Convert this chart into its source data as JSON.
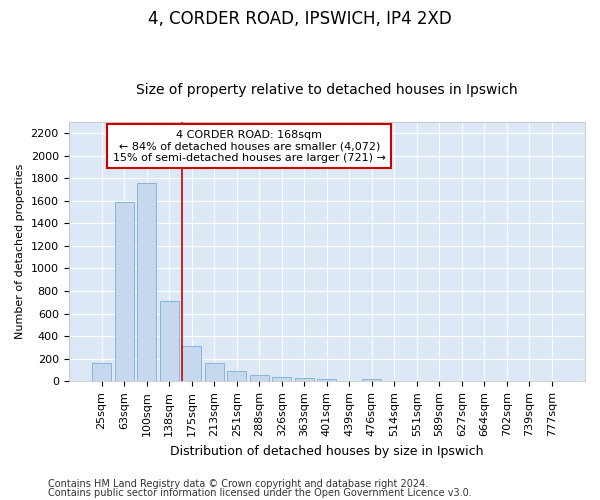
{
  "title_line1": "4, CORDER ROAD, IPSWICH, IP4 2XD",
  "title_line2": "Size of property relative to detached houses in Ipswich",
  "xlabel": "Distribution of detached houses by size in Ipswich",
  "ylabel": "Number of detached properties",
  "footnote1": "Contains HM Land Registry data © Crown copyright and database right 2024.",
  "footnote2": "Contains public sector information licensed under the Open Government Licence v3.0.",
  "bar_labels": [
    "25sqm",
    "63sqm",
    "100sqm",
    "138sqm",
    "175sqm",
    "213sqm",
    "251sqm",
    "288sqm",
    "326sqm",
    "363sqm",
    "401sqm",
    "439sqm",
    "476sqm",
    "514sqm",
    "551sqm",
    "589sqm",
    "627sqm",
    "664sqm",
    "702sqm",
    "739sqm",
    "777sqm"
  ],
  "bar_values": [
    160,
    1590,
    1760,
    710,
    315,
    160,
    90,
    55,
    35,
    25,
    20,
    0,
    20,
    0,
    0,
    0,
    0,
    0,
    0,
    0,
    0
  ],
  "bar_color": "#c5d8ed",
  "bar_edgecolor": "#7aafd4",
  "background_color": "#dce8f5",
  "grid_color": "#ffffff",
  "vline_x": 4.0,
  "vline_color": "#cc0000",
  "ylim": [
    0,
    2300
  ],
  "yticks": [
    0,
    200,
    400,
    600,
    800,
    1000,
    1200,
    1400,
    1600,
    1800,
    2000,
    2200
  ],
  "annotation_text": "4 CORDER ROAD: 168sqm\n← 84% of detached houses are smaller (4,072)\n15% of semi-detached houses are larger (721) →",
  "annotation_box_facecolor": "white",
  "annotation_box_edgecolor": "#cc0000",
  "title1_fontsize": 12,
  "title2_fontsize": 10,
  "xlabel_fontsize": 9,
  "ylabel_fontsize": 8,
  "tick_fontsize": 8,
  "annotation_fontsize": 8,
  "footnote_fontsize": 7
}
